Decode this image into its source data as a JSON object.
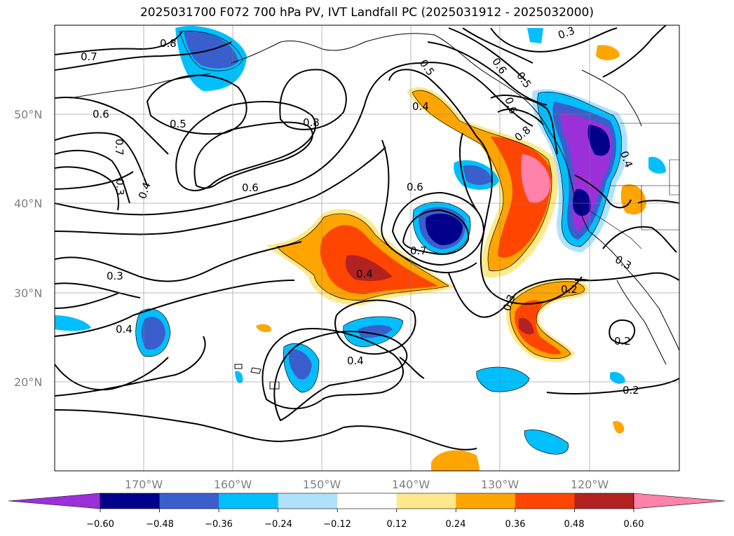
{
  "title": "2025031700 F072 700 hPa PV, IVT Landfall PC (2025031912 - 2025032000)",
  "lat_labels": [
    "50°N",
    "40°N",
    "30°N",
    "20°N"
  ],
  "lon_labels": [
    "170°W",
    "160°W",
    "150°W",
    "140°W",
    "130°W",
    "120°W"
  ],
  "contour_labels": [
    "0.8",
    "0.7",
    "0.6",
    "0.5",
    "0.7",
    "0.3",
    "0.4",
    "0.8",
    "0.6",
    "0.5",
    "0.4",
    "0.6",
    "0.5",
    "0.6",
    "0.8",
    "0.3",
    "0.4",
    "0.6",
    "0.7",
    "0.3",
    "0.4",
    "0.4",
    "0.3",
    "0.2",
    "0.3",
    "0.2",
    "0.2",
    "0.4"
  ],
  "colorbar": {
    "tick_labels": [
      "−0.60",
      "−0.48",
      "−0.36",
      "−0.24",
      "−0.12",
      "0.12",
      "0.24",
      "0.36",
      "0.48",
      "0.60"
    ],
    "colors": [
      "#9b30d9",
      "#00008b",
      "#3a5fcd",
      "#00bfff",
      "#b0e2ff",
      "#ffffff",
      "#ffe98a",
      "#ffa500",
      "#ff4500",
      "#b22222",
      "#ff82ab"
    ]
  },
  "palette": {
    "purple": "#9b30d9",
    "navy": "#00008b",
    "royal": "#3a5fcd",
    "sky": "#00bfff",
    "pale": "#b0e2ff",
    "yellow": "#ffe98a",
    "orange": "#ffa500",
    "red": "#ff4500",
    "darkred": "#b22222",
    "pink": "#ff82ab"
  }
}
